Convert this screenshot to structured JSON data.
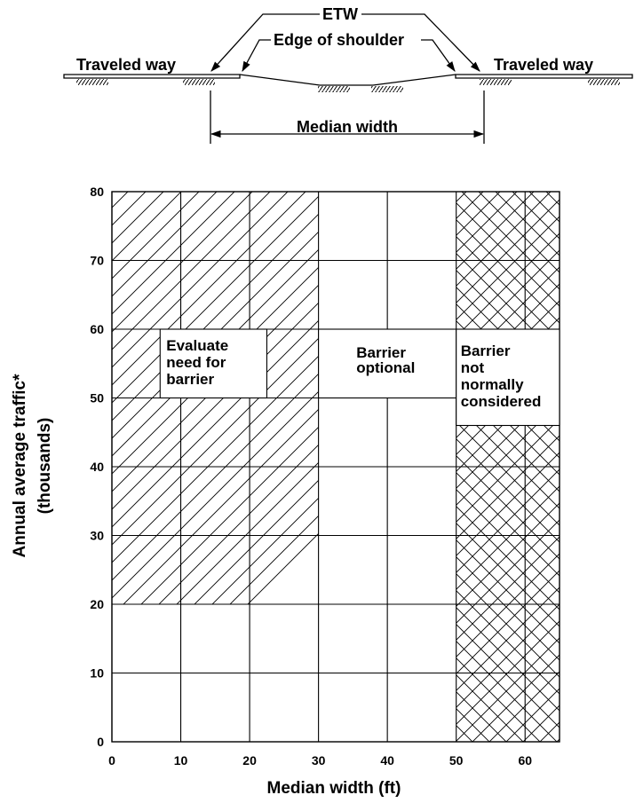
{
  "cross_section": {
    "etw_label": "ETW",
    "edge_of_shoulder_label": "Edge of shoulder",
    "traveled_way_left": "Traveled way",
    "traveled_way_right": "Traveled way",
    "median_width_label": "Median width"
  },
  "chart_data": {
    "type": "area",
    "xlabel": "Median width (ft)",
    "ylabel_line1": "Annual average traffic*",
    "ylabel_line2": "(thousands)",
    "xlim": [
      0,
      65
    ],
    "ylim": [
      0,
      80
    ],
    "x_ticks": [
      0,
      10,
      20,
      30,
      40,
      50,
      60
    ],
    "y_ticks": [
      0,
      10,
      20,
      30,
      40,
      50,
      60,
      70,
      80
    ],
    "grid": true,
    "regions": [
      {
        "name": "evaluate",
        "pattern": "diagonal-hatch",
        "polygon": [
          [
            0,
            20
          ],
          [
            20,
            20
          ],
          [
            30,
            30
          ],
          [
            30,
            80
          ],
          [
            0,
            80
          ]
        ],
        "label_lines": [
          "Evaluate",
          "need for",
          "barrier"
        ]
      },
      {
        "name": "optional",
        "pattern": "none",
        "polygon": [],
        "label_lines": [
          "Barrier",
          "optional"
        ]
      },
      {
        "name": "not-considered",
        "pattern": "cross-hatch",
        "polygon": [
          [
            50,
            0
          ],
          [
            65,
            0
          ],
          [
            65,
            80
          ],
          [
            50,
            80
          ]
        ],
        "label_lines": [
          "Barrier",
          "not",
          "normally",
          "considered"
        ]
      }
    ]
  }
}
